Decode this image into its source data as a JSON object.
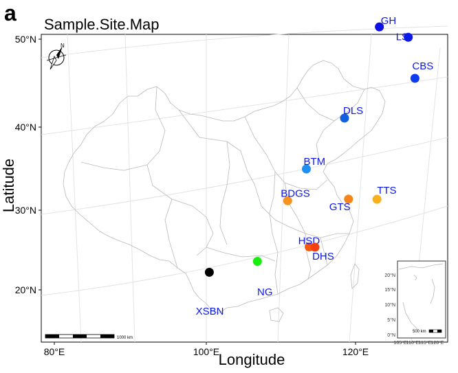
{
  "panel_label": "a",
  "title": "Sample.Site.Map",
  "axes": {
    "xlabel": "Longitude",
    "ylabel": "Latitude",
    "x_ticks": [
      "80°E",
      "100°E",
      "120°E"
    ],
    "y_ticks": [
      "20°N",
      "30°N",
      "40°N",
      "50°N"
    ]
  },
  "north_arrow": {
    "label": "N"
  },
  "scale_bar": {
    "label": "1000 km"
  },
  "sites": [
    {
      "name": "GH",
      "lon": 124.5,
      "lat": 51.1,
      "color": "#0a10e6"
    },
    {
      "name": "LS",
      "lon": 127.8,
      "lat": 49.5,
      "color": "#0a1ae8"
    },
    {
      "name": "CBS",
      "lon": 128.0,
      "lat": 44.3,
      "color": "#0b3cf0"
    },
    {
      "name": "DLS",
      "lon": 119.0,
      "lat": 40.0,
      "color": "#1060e0"
    },
    {
      "name": "BTM",
      "lon": 113.7,
      "lat": 34.0,
      "color": "#1e90f5"
    },
    {
      "name": "TTS",
      "lon": 121.7,
      "lat": 29.5,
      "color": "#f7b020"
    },
    {
      "name": "BDGS",
      "lon": 111.0,
      "lat": 30.2,
      "color": "#f59520"
    },
    {
      "name": "GTS",
      "lon": 118.3,
      "lat": 29.8,
      "color": "#f58518"
    },
    {
      "name": "HSD",
      "lon": 112.9,
      "lat": 24.2,
      "color": "#f55a10"
    },
    {
      "name": "DHS",
      "lon": 113.6,
      "lat": 24.1,
      "color": "#f54010"
    },
    {
      "name": "NG",
      "lon": 106.5,
      "lat": 22.9,
      "color": "#1aee10"
    },
    {
      "name": "XSBN",
      "lon": 100.6,
      "lat": 22.0,
      "color": "#000000"
    }
  ],
  "inset": {
    "y_ticks": [
      "20°N",
      "15°N",
      "10°N",
      "5°N",
      "0°N"
    ],
    "x_ticks": [
      "105°E",
      "110°E",
      "115°E",
      "120°E"
    ],
    "scale_label": "500 km"
  }
}
